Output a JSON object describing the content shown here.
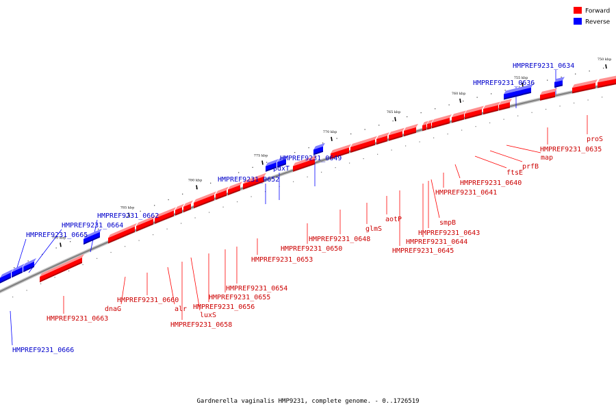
{
  "title": "Gardnerella vaginalis HMP9231, complete genome. - 0..1726519",
  "legend": [
    {
      "label": "Forward",
      "color": "#ff0000"
    },
    {
      "label": "Reverse",
      "color": "#0000ff"
    }
  ],
  "colors": {
    "forward": "#ff0000",
    "reverse": "#0000ff",
    "forward_label": "#cc0000",
    "reverse_label": "#0000cc",
    "backbone": "#808080"
  },
  "ticks": [
    "750 kbp",
    "755 kbp",
    "760 kbp",
    "765 kbp",
    "770 kbp",
    "775 kbp",
    "780 kbp",
    "785 kbp",
    "790 kbp"
  ],
  "genes": [
    {
      "name": "HMPREF9231_0634",
      "strand": "reverse"
    },
    {
      "name": "HMPREF9231_0636",
      "strand": "reverse"
    },
    {
      "name": "proS",
      "strand": "forward"
    },
    {
      "name": "HMPREF9231_0635",
      "strand": "forward"
    },
    {
      "name": "map",
      "strand": "forward"
    },
    {
      "name": "prfB",
      "strand": "forward"
    },
    {
      "name": "ftsE",
      "strand": "forward"
    },
    {
      "name": "HMPREF9231_0640",
      "strand": "forward"
    },
    {
      "name": "HMPREF9231_0641",
      "strand": "forward"
    },
    {
      "name": "smpB",
      "strand": "forward"
    },
    {
      "name": "HMPREF9231_0643",
      "strand": "forward"
    },
    {
      "name": "HMPREF9231_0644",
      "strand": "forward"
    },
    {
      "name": "HMPREF9231_0645",
      "strand": "forward"
    },
    {
      "name": "aotP",
      "strand": "forward"
    },
    {
      "name": "glmS",
      "strand": "forward"
    },
    {
      "name": "HMPREF9231_0648",
      "strand": "forward"
    },
    {
      "name": "HMPREF9231_0649",
      "strand": "reverse"
    },
    {
      "name": "HMPREF9231_0650",
      "strand": "forward"
    },
    {
      "name": "pdxT",
      "strand": "reverse"
    },
    {
      "name": "HMPREF9231_0652",
      "strand": "reverse"
    },
    {
      "name": "HMPREF9231_0653",
      "strand": "forward"
    },
    {
      "name": "HMPREF9231_0654",
      "strand": "forward"
    },
    {
      "name": "HMPREF9231_0655",
      "strand": "forward"
    },
    {
      "name": "HMPREF9231_0656",
      "strand": "forward"
    },
    {
      "name": "luxS",
      "strand": "forward"
    },
    {
      "name": "HMPREF9231_0658",
      "strand": "forward"
    },
    {
      "name": "alr",
      "strand": "forward"
    },
    {
      "name": "HMPREF9231_0660",
      "strand": "forward"
    },
    {
      "name": "dnaG",
      "strand": "forward"
    },
    {
      "name": "HMPREF9231_0662",
      "strand": "reverse"
    },
    {
      "name": "HMPREF9231_0663",
      "strand": "forward"
    },
    {
      "name": "HMPREF9231_0664",
      "strand": "reverse"
    },
    {
      "name": "HMPREF9231_0665",
      "strand": "reverse"
    },
    {
      "name": "HMPREF9231_0666",
      "strand": "reverse"
    }
  ]
}
